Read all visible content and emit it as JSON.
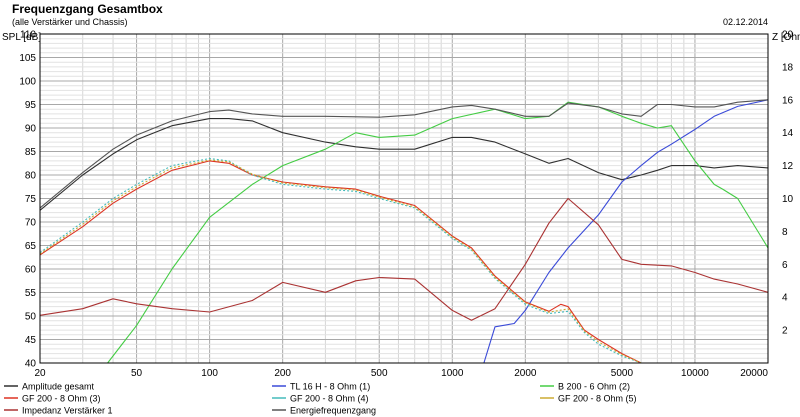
{
  "chart_data": {
    "type": "line",
    "title": "Frequenzgang Gesamtbox",
    "subtitle": "(alle Verstärker und Chassis)",
    "date": "02.12.2014",
    "left_axis_label": "SPL [dB]",
    "right_axis_label": "Z [Ohm",
    "x_scale": "log",
    "x_range": [
      20,
      20000
    ],
    "y_left_range": [
      40,
      110
    ],
    "y_right_range": [
      0,
      20
    ],
    "x_ticks": [
      "20",
      "50",
      "100",
      "200",
      "500",
      "1000",
      "2000",
      "5000",
      "10000",
      "20000"
    ],
    "y_left_ticks": [
      "40",
      "45",
      "50",
      "55",
      "60",
      "65",
      "70",
      "75",
      "80",
      "85",
      "90",
      "95",
      "100",
      "105",
      "110"
    ],
    "y_right_ticks": [
      "2",
      "4",
      "6",
      "8",
      "10",
      "12",
      "14",
      "16",
      "18",
      "20"
    ],
    "grid": true,
    "legend_position": "bottom",
    "series": [
      {
        "name": "Amplitude gesamt",
        "axis": "left",
        "color": "#303030",
        "dash": false,
        "x": [
          20,
          30,
          40,
          50,
          70,
          100,
          120,
          150,
          200,
          300,
          400,
          500,
          700,
          1000,
          1200,
          1500,
          2000,
          2500,
          3000,
          4000,
          5000,
          6000,
          7000,
          8000,
          10000,
          12000,
          15000,
          20000
        ],
        "y": [
          72.5,
          80,
          84.5,
          87.5,
          90.5,
          92,
          92,
          91.5,
          89,
          87,
          86,
          85.5,
          85.5,
          88,
          88,
          87,
          84.5,
          82.5,
          83.5,
          80.5,
          79,
          80,
          81,
          82,
          82,
          81.5,
          82,
          81.5
        ]
      },
      {
        "name": "TL 16 H - 8 Ohm (1)",
        "axis": "right",
        "color": "#3a4ad8",
        "dash": false,
        "x": [
          20,
          500,
          1000,
          1350,
          1500,
          1800,
          2000,
          2500,
          3000,
          4000,
          5000,
          6000,
          7000,
          8000,
          10000,
          12000,
          15000,
          20000
        ],
        "y": [
          0,
          0,
          0,
          0,
          2.2,
          2.4,
          3.2,
          5.5,
          7,
          9,
          11,
          12,
          12.8,
          13.3,
          14.2,
          15,
          15.6,
          16
        ]
      },
      {
        "name": "B 200 - 6 Ohm (2)",
        "axis": "left",
        "color": "#44cc44",
        "dash": false,
        "x": [
          38,
          50,
          70,
          100,
          150,
          200,
          300,
          400,
          500,
          700,
          1000,
          1500,
          2000,
          2500,
          3000,
          4000,
          5000,
          6000,
          7000,
          8000,
          10000,
          12000,
          13000,
          15000,
          20000
        ],
        "y": [
          40,
          48,
          60,
          71,
          78,
          82,
          85.5,
          89,
          88,
          88.5,
          92,
          94,
          92,
          92.5,
          95.5,
          94.5,
          92.5,
          91,
          90,
          90.5,
          83,
          78,
          77,
          75,
          64.5
        ]
      },
      {
        "name": "GF 200 - 8 Ohm (3)",
        "axis": "left",
        "color": "#dd3322",
        "dash": false,
        "x": [
          20,
          30,
          40,
          50,
          70,
          100,
          120,
          150,
          200,
          300,
          400,
          500,
          700,
          1000,
          1200,
          1500,
          2000,
          2500,
          2800,
          3000,
          3500,
          4000,
          5000,
          6000
        ],
        "y": [
          63,
          69,
          74,
          77,
          81,
          83,
          82.5,
          80,
          78.5,
          77.5,
          77,
          75.5,
          73.5,
          67,
          64.5,
          58.5,
          53,
          51,
          52.5,
          52,
          47,
          45,
          42,
          40
        ]
      },
      {
        "name": "GF 200 - 8 Ohm (4)",
        "axis": "left",
        "color": "#44bbbb",
        "dash": true,
        "x": [
          20,
          30,
          40,
          50,
          70,
          100,
          120,
          150,
          200,
          300,
          400,
          500,
          700,
          1000,
          1200,
          1500,
          2000,
          2500,
          3000,
          3500,
          4000,
          5000,
          6000
        ],
        "y": [
          63.5,
          70,
          75,
          78,
          82,
          83.5,
          83,
          80,
          78,
          77,
          76.5,
          75,
          73,
          66.5,
          64,
          58,
          52.5,
          50.5,
          51,
          46.5,
          44,
          41.5,
          40
        ]
      },
      {
        "name": "GF 200 - 8 Ohm (5)",
        "axis": "left",
        "color": "#ccaa33",
        "dash": true,
        "x": [
          20,
          30,
          40,
          50,
          70,
          100,
          120,
          150,
          200,
          300,
          400,
          500,
          700,
          1000,
          1200,
          1500,
          2000,
          2500,
          3000,
          3500,
          4000,
          5000,
          6000
        ],
        "y": [
          63.2,
          69.5,
          74.5,
          77.5,
          81.5,
          83.2,
          82.8,
          80.2,
          78.3,
          77.3,
          76.8,
          75.3,
          73.2,
          66.8,
          64.2,
          58.2,
          52.8,
          50.8,
          51.5,
          46.8,
          44.5,
          41.8,
          40
        ]
      },
      {
        "name": "Impedanz Verstärker 1",
        "axis": "right",
        "color": "#aa3333",
        "dash": false,
        "x": [
          20,
          30,
          40,
          50,
          70,
          100,
          150,
          200,
          300,
          400,
          500,
          700,
          1000,
          1200,
          1500,
          2000,
          2500,
          3000,
          4000,
          5000,
          6000,
          8000,
          10000,
          12000,
          15000,
          20000
        ],
        "y": [
          2.9,
          3.3,
          3.9,
          3.6,
          3.3,
          3.1,
          3.8,
          4.9,
          4.3,
          5,
          5.2,
          5.1,
          3.2,
          2.6,
          3.3,
          6,
          8.5,
          10,
          8.4,
          6.3,
          6,
          5.9,
          5.5,
          5.1,
          4.8,
          4.3
        ]
      },
      {
        "name": "Energiefrequenzgang",
        "axis": "left",
        "color": "#555555",
        "dash": false,
        "x": [
          20,
          30,
          40,
          50,
          70,
          100,
          120,
          150,
          200,
          300,
          500,
          700,
          1000,
          1200,
          1500,
          2000,
          2500,
          3000,
          4000,
          5000,
          6000,
          7000,
          8000,
          10000,
          12000,
          15000,
          20000
        ],
        "y": [
          73,
          80.5,
          85.5,
          88.5,
          91.5,
          93.5,
          93.8,
          93,
          92.5,
          92.5,
          92.3,
          92.8,
          94.5,
          94.8,
          94,
          92.5,
          92.5,
          95.3,
          94.5,
          93,
          92.5,
          95,
          95,
          94.5,
          94.5,
          95.5,
          96
        ]
      }
    ]
  }
}
